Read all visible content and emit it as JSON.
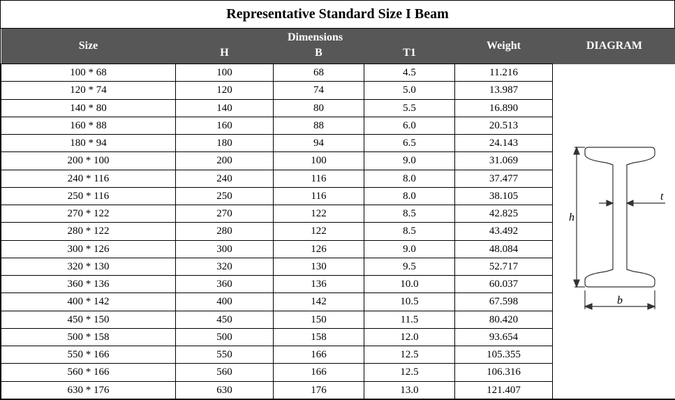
{
  "title": "Representative Standard Size I Beam",
  "header": {
    "size": "Size",
    "dimensions": "Dimensions",
    "H": "H",
    "B": "B",
    "T1": "T1",
    "weight": "Weight",
    "diagram": "DIAGRAM"
  },
  "columns_width": {
    "size": 250,
    "H": 140,
    "B": 130,
    "T1": 130,
    "weight": 140,
    "diagram": 177
  },
  "header_style": {
    "background_color": "#575757",
    "text_color": "#ffffff",
    "font_weight": "bold"
  },
  "cell_style": {
    "border_color": "#000000",
    "text_align": "center",
    "font_size": 15
  },
  "rows": [
    {
      "size": "100 * 68",
      "H": "100",
      "B": "68",
      "T1": "4.5",
      "weight": "11.216"
    },
    {
      "size": "120 * 74",
      "H": "120",
      "B": "74",
      "T1": "5.0",
      "weight": "13.987"
    },
    {
      "size": "140 * 80",
      "H": "140",
      "B": "80",
      "T1": "5.5",
      "weight": "16.890"
    },
    {
      "size": "160 * 88",
      "H": "160",
      "B": "88",
      "T1": "6.0",
      "weight": "20.513"
    },
    {
      "size": "180 * 94",
      "H": "180",
      "B": "94",
      "T1": "6.5",
      "weight": "24.143"
    },
    {
      "size": "200 * 100",
      "H": "200",
      "B": "100",
      "T1": "9.0",
      "weight": "31.069"
    },
    {
      "size": "240 * 116",
      "H": "240",
      "B": "116",
      "T1": "8.0",
      "weight": "37.477"
    },
    {
      "size": "250 * 116",
      "H": "250",
      "B": "116",
      "T1": "8.0",
      "weight": "38.105"
    },
    {
      "size": "270 * 122",
      "H": "270",
      "B": "122",
      "T1": "8.5",
      "weight": "42.825"
    },
    {
      "size": "280 * 122",
      "H": "280",
      "B": "122",
      "T1": "8.5",
      "weight": "43.492"
    },
    {
      "size": "300 * 126",
      "H": "300",
      "B": "126",
      "T1": "9.0",
      "weight": "48.084"
    },
    {
      "size": "320 * 130",
      "H": "320",
      "B": "130",
      "T1": "9.5",
      "weight": "52.717"
    },
    {
      "size": "360 * 136",
      "H": "360",
      "B": "136",
      "T1": "10.0",
      "weight": "60.037"
    },
    {
      "size": "400 * 142",
      "H": "400",
      "B": "142",
      "T1": "10.5",
      "weight": "67.598"
    },
    {
      "size": "450 * 150",
      "H": "450",
      "B": "150",
      "T1": "11.5",
      "weight": "80.420"
    },
    {
      "size": "500 * 158",
      "H": "500",
      "B": "158",
      "T1": "12.0",
      "weight": "93.654"
    },
    {
      "size": "550 * 166",
      "H": "550",
      "B": "166",
      "T1": "12.5",
      "weight": "105.355"
    },
    {
      "size": "560 * 166",
      "H": "560",
      "B": "166",
      "T1": "12.5",
      "weight": "106.316"
    },
    {
      "size": "630 * 176",
      "H": "630",
      "B": "176",
      "T1": "13.0",
      "weight": "121.407"
    }
  ],
  "diagram": {
    "type": "i-beam-cross-section",
    "labels": {
      "height": "h",
      "width": "b",
      "thickness": "t"
    },
    "stroke_color": "#333333",
    "stroke_width": 1.2,
    "label_font_size": 16,
    "label_font_style": "italic"
  }
}
